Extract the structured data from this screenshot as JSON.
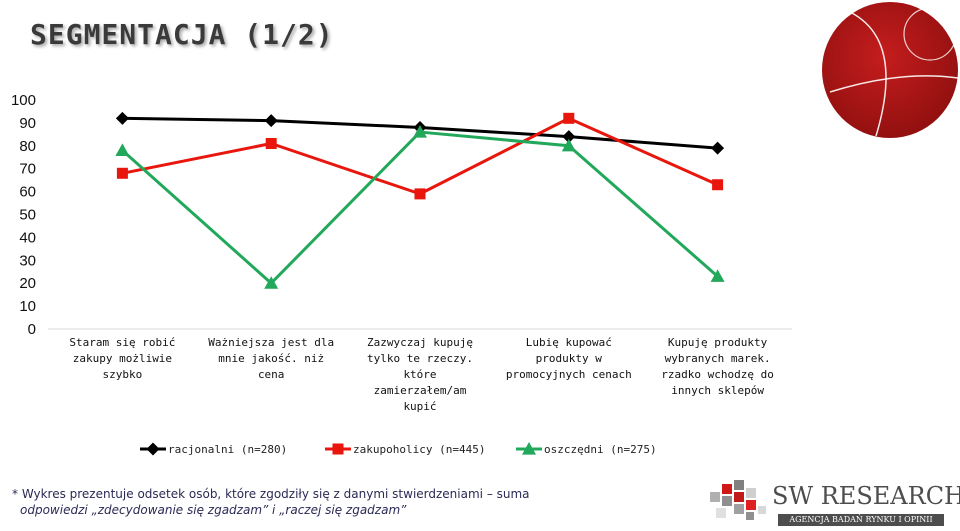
{
  "header": {
    "title": "SEGMENTACJA (1/2)"
  },
  "chart_data": {
    "type": "line",
    "categories": [
      [
        "Staram się robić",
        "zakupy możliwie",
        "szybko"
      ],
      [
        "Ważniejsza jest dla",
        "mnie jakość. niż",
        "cena"
      ],
      [
        "Zazwyczaj kupuję",
        "tylko te rzeczy.",
        "które",
        "zamierzałem/am",
        "kupić"
      ],
      [
        "Lubię kupować",
        "produkty w",
        "promocyjnych cenach"
      ],
      [
        "Kupuję produkty",
        "wybranych marek.",
        "rzadko wchodzę do",
        "innych sklepów"
      ]
    ],
    "ylim": [
      0,
      100
    ],
    "yticks": [
      0,
      10,
      20,
      30,
      40,
      50,
      60,
      70,
      80,
      90,
      100
    ],
    "legend_position": "bottom",
    "series": [
      {
        "name": "racjonalni  (n=280)",
        "color": "#000000",
        "marker": "diamond",
        "values": [
          92,
          91,
          88,
          84,
          79
        ]
      },
      {
        "name": "zakupoholicy (n=445)",
        "color": "#e8160c",
        "marker": "square",
        "values": [
          68,
          81,
          59,
          92,
          63
        ]
      },
      {
        "name": "oszczędni (n=275)",
        "color": "#22a85a",
        "marker": "triangle",
        "values": [
          78,
          20,
          86,
          80,
          23
        ]
      }
    ]
  },
  "footnote": {
    "line1": "* Wykres prezentuje odsetek osób, które zgodziły się z danymi stwierdzeniami – suma",
    "line2": "odpowiedzi „zdecydowanie się zgadzam” i „raczej się zgadzam”"
  },
  "brand": {
    "name": "SW RESEARCH",
    "tagline": "AGENCJA BADAŃ RYNKU I OPINII"
  }
}
